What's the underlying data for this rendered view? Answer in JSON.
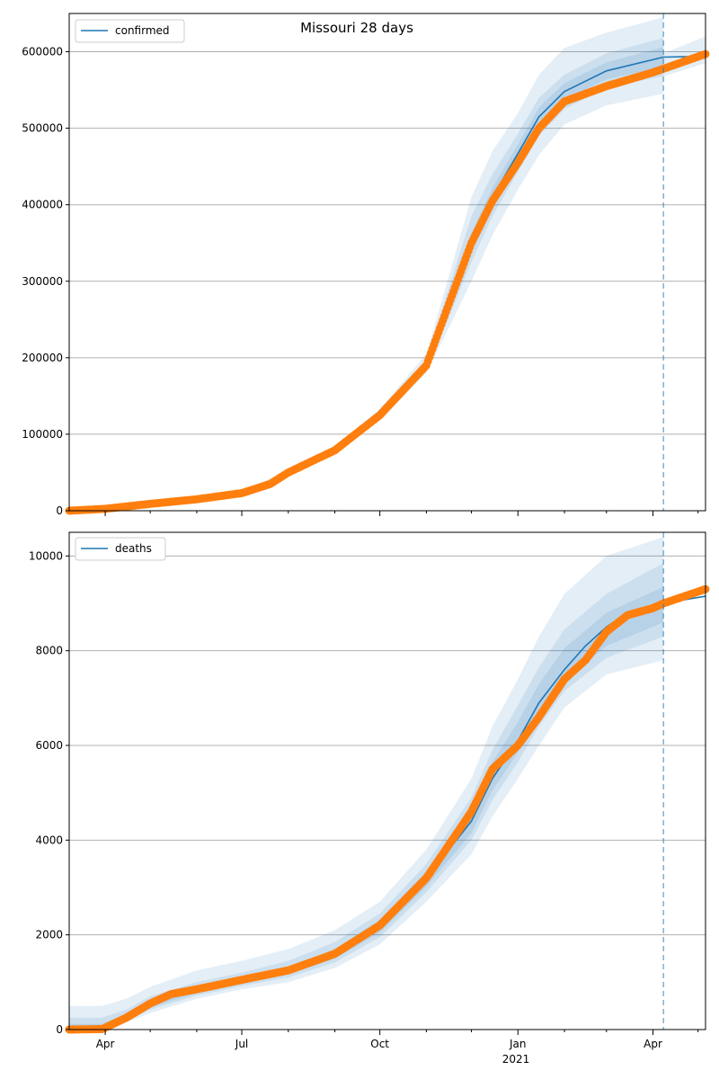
{
  "figure": {
    "title": "Missouri 28 days"
  },
  "colors": {
    "model": "#1f77b4",
    "observed": "#ff7f0e",
    "band": "#1f77b4",
    "grid": "#b0b0b0",
    "cutoff": "#1f77b4"
  },
  "time_axis": {
    "start": "2020-03-08",
    "end": "2021-05-06",
    "cutoff": "2021-04-08",
    "major_ticks": [
      {
        "date": "2020-04-01",
        "label": "Apr"
      },
      {
        "date": "2020-07-01",
        "label": "Jul"
      },
      {
        "date": "2020-10-01",
        "label": "Oct"
      },
      {
        "date": "2021-01-01",
        "label": "Jan"
      },
      {
        "date": "2021-04-01",
        "label": "Apr"
      }
    ],
    "year_label": "2021",
    "minor_ticks": [
      "2020-05-01",
      "2020-06-01",
      "2020-08-01",
      "2020-09-01",
      "2020-11-01",
      "2020-12-01",
      "2021-02-01",
      "2021-03-01",
      "2021-05-01"
    ]
  },
  "chart_data": [
    {
      "type": "line",
      "legend": "confirmed",
      "legend_position": "top-left",
      "grid": "y",
      "ylim": [
        0,
        650000
      ],
      "yticks": [
        {
          "value": 0,
          "label": "0"
        },
        {
          "value": 100000,
          "label": "100000"
        },
        {
          "value": 200000,
          "label": "200000"
        },
        {
          "value": 300000,
          "label": "300000"
        },
        {
          "value": 400000,
          "label": "400000"
        },
        {
          "value": 500000,
          "label": "500000"
        },
        {
          "value": 600000,
          "label": "600000"
        }
      ],
      "observed_x": [
        "2020-03-08",
        "2020-04-01",
        "2020-05-01",
        "2020-06-01",
        "2020-07-01",
        "2020-07-20",
        "2020-08-01",
        "2020-09-01",
        "2020-10-01",
        "2020-11-01",
        "2020-11-15",
        "2020-12-01",
        "2020-12-15",
        "2021-01-01",
        "2021-01-15",
        "2021-02-01",
        "2021-03-01",
        "2021-04-01",
        "2021-05-06"
      ],
      "observed_y": [
        0,
        2500,
        9000,
        15000,
        23000,
        35000,
        50000,
        79000,
        125000,
        190000,
        265000,
        350000,
        405000,
        455000,
        500000,
        535000,
        555000,
        573000,
        597000
      ],
      "model_x": [
        "2020-03-08",
        "2020-04-01",
        "2020-05-01",
        "2020-06-01",
        "2020-07-01",
        "2020-07-20",
        "2020-08-01",
        "2020-09-01",
        "2020-10-01",
        "2020-11-01",
        "2020-11-15",
        "2020-12-01",
        "2020-12-15",
        "2021-01-01",
        "2021-01-15",
        "2021-02-01",
        "2021-03-01",
        "2021-04-08",
        "2021-05-06"
      ],
      "model_y": [
        0,
        2500,
        9000,
        15000,
        23000,
        35000,
        50000,
        79000,
        125000,
        190000,
        265000,
        350000,
        410000,
        467000,
        515000,
        548000,
        575000,
        593000,
        594000
      ],
      "band_x": [
        "2020-03-08",
        "2020-07-01",
        "2020-09-01",
        "2020-10-01",
        "2020-11-01",
        "2020-11-15",
        "2020-12-01",
        "2020-12-15",
        "2021-01-01",
        "2021-01-15",
        "2021-02-01",
        "2021-03-01",
        "2021-04-08"
      ],
      "band_outer_lo": [
        0,
        22000,
        75000,
        118000,
        180000,
        235000,
        300000,
        360000,
        420000,
        465000,
        505000,
        530000,
        545000
      ],
      "band_outer_hi": [
        0,
        24000,
        83000,
        133000,
        205000,
        300000,
        410000,
        470000,
        520000,
        570000,
        605000,
        625000,
        645000
      ],
      "band_mid_lo": [
        0,
        22500,
        77000,
        121000,
        184000,
        248000,
        325000,
        385000,
        443000,
        490000,
        525000,
        553000,
        568000
      ],
      "band_mid_hi": [
        0,
        23500,
        81000,
        129000,
        198000,
        285000,
        385000,
        440000,
        493000,
        540000,
        570000,
        598000,
        618000
      ],
      "band_inner_lo": [
        0,
        22800,
        78000,
        123000,
        187000,
        256000,
        337000,
        398000,
        455000,
        503000,
        537000,
        564000,
        580000
      ],
      "band_inner_hi": [
        0,
        23200,
        80000,
        127000,
        193000,
        274000,
        363000,
        422000,
        479000,
        527000,
        559000,
        586000,
        606000
      ],
      "after_band_x": [
        "2021-04-08",
        "2021-05-06"
      ],
      "after_band_lo": [
        568000,
        585000
      ],
      "after_band_hi": [
        598000,
        620000
      ]
    },
    {
      "type": "line",
      "legend": "deaths",
      "legend_position": "top-left",
      "grid": "y",
      "ylim": [
        0,
        10500
      ],
      "yticks": [
        {
          "value": 0,
          "label": "0"
        },
        {
          "value": 2000,
          "label": "2000"
        },
        {
          "value": 4000,
          "label": "4000"
        },
        {
          "value": 6000,
          "label": "6000"
        },
        {
          "value": 8000,
          "label": "8000"
        },
        {
          "value": 10000,
          "label": "10000"
        }
      ],
      "observed_x": [
        "2020-03-08",
        "2020-03-30",
        "2020-04-15",
        "2020-05-01",
        "2020-05-15",
        "2020-06-01",
        "2020-07-01",
        "2020-08-01",
        "2020-09-01",
        "2020-10-01",
        "2020-11-01",
        "2020-12-01",
        "2020-12-15",
        "2021-01-01",
        "2021-01-15",
        "2021-02-01",
        "2021-02-15",
        "2021-03-01",
        "2021-03-15",
        "2021-04-01",
        "2021-04-08",
        "2021-05-06"
      ],
      "observed_y": [
        0,
        10,
        250,
        550,
        750,
        850,
        1050,
        1250,
        1600,
        2200,
        3200,
        4600,
        5500,
        6000,
        6600,
        7400,
        7800,
        8400,
        8750,
        8900,
        9000,
        9300
      ],
      "model_x": [
        "2020-03-08",
        "2020-03-30",
        "2020-04-15",
        "2020-05-01",
        "2020-05-15",
        "2020-06-01",
        "2020-07-01",
        "2020-08-01",
        "2020-09-01",
        "2020-10-01",
        "2020-11-01",
        "2020-12-01",
        "2020-12-15",
        "2021-01-01",
        "2021-01-15",
        "2021-02-01",
        "2021-02-15",
        "2021-03-01",
        "2021-03-15",
        "2021-04-01",
        "2021-04-08",
        "2021-05-06"
      ],
      "model_y": [
        0,
        10,
        250,
        550,
        750,
        850,
        1050,
        1250,
        1600,
        2200,
        3200,
        4400,
        5300,
        6100,
        6900,
        7600,
        8100,
        8500,
        8800,
        8950,
        9000,
        9150
      ],
      "band_x": [
        "2020-03-08",
        "2020-03-30",
        "2020-04-15",
        "2020-05-01",
        "2020-06-01",
        "2020-07-01",
        "2020-08-01",
        "2020-09-01",
        "2020-10-01",
        "2020-11-01",
        "2020-12-01",
        "2020-12-15",
        "2021-01-01",
        "2021-01-15",
        "2021-02-01",
        "2021-03-01",
        "2021-04-08"
      ],
      "band_outer_lo": [
        0,
        0,
        150,
        350,
        650,
        850,
        1000,
        1300,
        1800,
        2700,
        3700,
        4500,
        5300,
        6000,
        6800,
        7500,
        7800
      ],
      "band_outer_hi": [
        500,
        500,
        650,
        900,
        1250,
        1450,
        1700,
        2100,
        2700,
        3800,
        5300,
        6400,
        7400,
        8300,
        9200,
        10000,
        10400
      ],
      "band_mid_lo": [
        0,
        0,
        200,
        420,
        720,
        920,
        1100,
        1420,
        1950,
        2900,
        4000,
        4850,
        5650,
        6400,
        7150,
        7850,
        8300
      ],
      "band_mid_hi": [
        250,
        250,
        420,
        700,
        1000,
        1200,
        1450,
        1850,
        2450,
        3500,
        4900,
        5900,
        6850,
        7650,
        8450,
        9200,
        9850
      ],
      "band_inner_lo": [
        0,
        0,
        220,
        470,
        770,
        980,
        1170,
        1500,
        2050,
        3020,
        4150,
        5050,
        5850,
        6600,
        7350,
        8100,
        8600
      ],
      "band_inner_hi": [
        120,
        120,
        330,
        600,
        900,
        1100,
        1320,
        1700,
        2320,
        3350,
        4700,
        5650,
        6500,
        7300,
        8050,
        8800,
        9350
      ],
      "after_band_x": [],
      "after_band_lo": [],
      "after_band_hi": []
    }
  ]
}
